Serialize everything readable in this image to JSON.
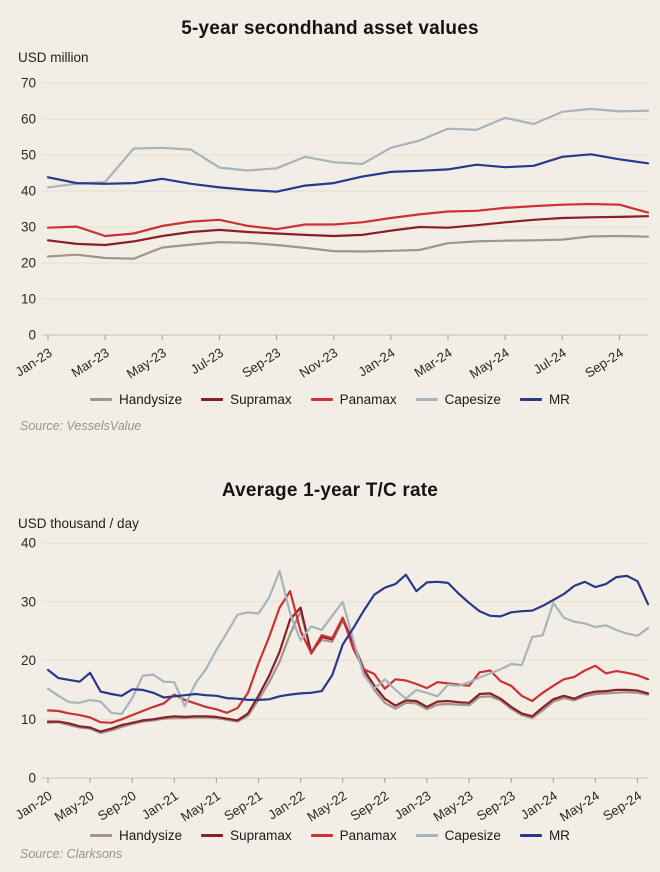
{
  "page": {
    "background": "#f2eee5",
    "gridline_color": "#e4dfd4",
    "baseline_color": "#c8c2b4",
    "tick_color": "#aaa396",
    "text_color": "#2b2925",
    "source_color": "#98938c"
  },
  "chart_data": [
    {
      "type": "line",
      "title": "5-year secondhand asset values",
      "unit_label": "USD million",
      "source": "Source: VesselsValue",
      "ylim": [
        0,
        70
      ],
      "y_ticks": [
        0,
        10,
        20,
        30,
        40,
        50,
        60,
        70
      ],
      "x_tick_step": 2,
      "grid": "horizontal",
      "legend_position": "bottom",
      "x": [
        "Jan-23",
        "Feb-23",
        "Mar-23",
        "Apr-23",
        "May-23",
        "Jun-23",
        "Jul-23",
        "Aug-23",
        "Sep-23",
        "Oct-23",
        "Nov-23",
        "Dec-23",
        "Jan-24",
        "Feb-24",
        "Mar-24",
        "Apr-24",
        "May-24",
        "Jun-24",
        "Jul-24",
        "Aug-24",
        "Sep-24",
        "Oct-24"
      ],
      "series": [
        {
          "name": "Handysize",
          "color": "#a4938b",
          "values": [
            21.8,
            22.3,
            21.4,
            21.2,
            24.3,
            25.1,
            25.8,
            25.6,
            25.0,
            24.2,
            23.3,
            23.2,
            23.4,
            23.6,
            25.5,
            26.0,
            26.2,
            26.3,
            26.5,
            27.4,
            27.5,
            27.3
          ]
        },
        {
          "name": "Supramax",
          "color": "#8a1f26",
          "values": [
            26.3,
            25.3,
            25.0,
            26.0,
            27.5,
            28.6,
            29.2,
            28.6,
            28.2,
            27.8,
            27.5,
            27.8,
            29.0,
            30.0,
            29.8,
            30.5,
            31.3,
            32.0,
            32.5,
            32.7,
            32.8,
            33.0
          ]
        },
        {
          "name": "Panamax",
          "color": "#cd3134",
          "values": [
            29.8,
            30.1,
            27.5,
            28.2,
            30.3,
            31.5,
            32.0,
            30.3,
            29.4,
            30.7,
            30.7,
            31.3,
            32.5,
            33.5,
            34.3,
            34.5,
            35.3,
            35.8,
            36.2,
            36.4,
            36.2,
            34.0
          ]
        },
        {
          "name": "Capesize",
          "color": "#a6b5bd",
          "values": [
            41.0,
            42.0,
            42.5,
            51.8,
            52.0,
            51.5,
            46.5,
            45.7,
            46.3,
            49.5,
            48.0,
            47.5,
            52.0,
            54.0,
            57.3,
            57.0,
            60.3,
            58.6,
            62.0,
            62.8,
            62.1,
            62.3
          ]
        },
        {
          "name": "MR",
          "color": "#28388c",
          "values": [
            43.8,
            42.2,
            42.0,
            42.2,
            43.4,
            42.0,
            41.0,
            40.3,
            39.8,
            41.5,
            42.2,
            44.0,
            45.3,
            45.6,
            46.0,
            47.3,
            46.6,
            47.0,
            49.5,
            50.2,
            48.8,
            47.7
          ]
        }
      ]
    },
    {
      "type": "line",
      "title": "Average 1-year T/C rate",
      "unit_label": "USD thousand / day",
      "source": "Source: Clarksons",
      "ylim": [
        0,
        40
      ],
      "y_ticks": [
        0,
        10,
        20,
        30,
        40
      ],
      "x_tick_step": 4,
      "grid": "horizontal",
      "legend_position": "bottom",
      "x": [
        "Jan-20",
        "Feb-20",
        "Mar-20",
        "Apr-20",
        "May-20",
        "Jun-20",
        "Jul-20",
        "Aug-20",
        "Sep-20",
        "Oct-20",
        "Nov-20",
        "Dec-20",
        "Jan-21",
        "Feb-21",
        "Mar-21",
        "Apr-21",
        "May-21",
        "Jun-21",
        "Jul-21",
        "Aug-21",
        "Sep-21",
        "Oct-21",
        "Nov-21",
        "Dec-21",
        "Jan-22",
        "Feb-22",
        "Mar-22",
        "Apr-22",
        "May-22",
        "Jun-22",
        "Jul-22",
        "Aug-22",
        "Sep-22",
        "Oct-22",
        "Nov-22",
        "Dec-22",
        "Jan-23",
        "Feb-23",
        "Mar-23",
        "Apr-23",
        "May-23",
        "Jun-23",
        "Jul-23",
        "Aug-23",
        "Sep-23",
        "Oct-23",
        "Nov-23",
        "Dec-23",
        "Jan-24",
        "Feb-24",
        "Mar-24",
        "Apr-24",
        "May-24",
        "Jun-24",
        "Jul-24",
        "Aug-24",
        "Sep-24",
        "Oct-24"
      ],
      "series": [
        {
          "name": "Handysize",
          "color": "#a4938b",
          "values": [
            9.4,
            9.5,
            9.0,
            8.6,
            8.4,
            7.7,
            8.1,
            8.7,
            9.2,
            9.6,
            9.8,
            10.1,
            10.2,
            10.2,
            10.3,
            10.3,
            10.2,
            9.9,
            9.6,
            10.6,
            13.3,
            16.3,
            19.8,
            24.5,
            28.3,
            21.5,
            23.5,
            23.2,
            26.8,
            23.0,
            18.0,
            15.0,
            12.8,
            11.8,
            12.8,
            12.7,
            11.7,
            12.5,
            12.6,
            12.5,
            12.4,
            13.8,
            13.9,
            13.2,
            11.8,
            10.7,
            10.2,
            11.5,
            13.0,
            13.6,
            13.2,
            13.9,
            14.3,
            14.4,
            14.5,
            14.6,
            14.5,
            14.2
          ]
        },
        {
          "name": "Supramax",
          "color": "#8a1f26",
          "values": [
            9.6,
            9.6,
            9.3,
            8.8,
            8.6,
            7.9,
            8.4,
            9.0,
            9.4,
            9.8,
            10.0,
            10.3,
            10.5,
            10.4,
            10.5,
            10.5,
            10.4,
            10.1,
            9.8,
            11.0,
            14.0,
            17.4,
            21.5,
            27.0,
            29.0,
            21.2,
            24.0,
            23.6,
            27.2,
            23.0,
            18.5,
            15.7,
            13.5,
            12.3,
            13.2,
            13.1,
            12.1,
            13.0,
            13.1,
            12.9,
            12.8,
            14.3,
            14.4,
            13.5,
            12.1,
            11.0,
            10.5,
            12.0,
            13.4,
            14.0,
            13.5,
            14.3,
            14.7,
            14.8,
            15.0,
            15.0,
            14.9,
            14.4
          ]
        },
        {
          "name": "Panamax",
          "color": "#cd3134",
          "values": [
            11.5,
            11.4,
            11.0,
            10.7,
            10.3,
            9.5,
            9.4,
            10.0,
            10.7,
            11.4,
            12.1,
            12.7,
            14.2,
            13.3,
            12.7,
            12.1,
            11.7,
            11.1,
            11.9,
            14.5,
            19.5,
            24.0,
            29.0,
            31.8,
            25.0,
            21.3,
            24.3,
            23.8,
            27.3,
            22.0,
            18.5,
            17.7,
            15.2,
            16.8,
            16.6,
            16.0,
            15.3,
            16.3,
            16.1,
            15.9,
            15.7,
            18.0,
            18.3,
            16.5,
            15.7,
            14.0,
            13.1,
            14.5,
            15.7,
            16.8,
            17.2,
            18.3,
            19.1,
            17.8,
            18.2,
            17.9,
            17.5,
            16.8
          ]
        },
        {
          "name": "Capesize",
          "color": "#a6b5bd",
          "values": [
            15.2,
            14.0,
            12.9,
            12.8,
            13.3,
            13.0,
            11.1,
            10.9,
            13.6,
            17.4,
            17.6,
            16.4,
            16.3,
            12.2,
            16.1,
            18.5,
            21.8,
            24.7,
            27.8,
            28.2,
            28.0,
            30.7,
            35.2,
            28.0,
            23.4,
            25.8,
            25.2,
            27.6,
            30.0,
            23.5,
            17.5,
            15.2,
            16.8,
            15.0,
            13.5,
            15.0,
            14.5,
            13.9,
            15.9,
            15.7,
            16.3,
            17.1,
            17.8,
            18.5,
            19.4,
            19.2,
            24.0,
            24.3,
            29.8,
            27.3,
            26.6,
            26.3,
            25.7,
            26.0,
            25.2,
            24.6,
            24.2,
            25.5
          ]
        },
        {
          "name": "MR",
          "color": "#28388c",
          "values": [
            18.4,
            17.0,
            16.7,
            16.4,
            17.9,
            14.7,
            14.3,
            14.0,
            15.1,
            15.0,
            14.5,
            13.7,
            13.9,
            14.1,
            14.3,
            14.1,
            14.0,
            13.6,
            13.5,
            13.3,
            13.3,
            13.4,
            13.9,
            14.2,
            14.4,
            14.5,
            14.8,
            17.5,
            22.7,
            25.5,
            28.5,
            31.2,
            32.4,
            33.0,
            34.6,
            31.8,
            33.3,
            33.4,
            33.2,
            31.4,
            29.8,
            28.4,
            27.6,
            27.5,
            28.2,
            28.4,
            28.5,
            29.3,
            30.3,
            31.3,
            32.7,
            33.4,
            32.5,
            33.0,
            34.2,
            34.4,
            33.5,
            29.6
          ]
        }
      ]
    }
  ]
}
